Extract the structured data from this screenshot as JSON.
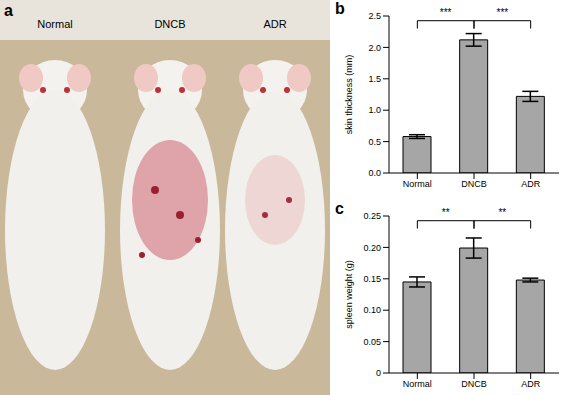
{
  "photo": {
    "panel": "a",
    "labels": [
      "Normal",
      "DNCB",
      "ADR"
    ]
  },
  "chart_data": [
    {
      "type": "bar",
      "panel": "b",
      "ylabel": "skin thickness  (mm)",
      "categories": [
        "Normal",
        "DNCB",
        "ADR"
      ],
      "values": [
        0.58,
        2.12,
        1.22
      ],
      "errors": [
        0.03,
        0.1,
        0.08
      ],
      "color": "#a6a6a6",
      "ylim": [
        0,
        2.5
      ],
      "yticks": [
        {
          "value": 0,
          "label": "0.0"
        },
        0.5,
        {
          "value": 1,
          "label": "1.0"
        },
        1.5,
        {
          "value": 2,
          "label": "2.0"
        },
        2.5
      ],
      "annotations": [
        {
          "from": "Normal",
          "to": "DNCB",
          "text": "***"
        },
        {
          "from": "DNCB",
          "to": "ADR",
          "text": "***"
        }
      ]
    },
    {
      "type": "bar",
      "panel": "c",
      "ylabel": "spleen weight (g)",
      "categories": [
        "Normal",
        "DNCB",
        "ADR"
      ],
      "values": [
        0.145,
        0.199,
        0.148
      ],
      "errors": [
        0.008,
        0.016,
        0.003
      ],
      "color": "#a6a6a6",
      "ylim": [
        0,
        0.25
      ],
      "yticks": [
        0,
        0.05,
        {
          "value": 0.1,
          "label": "0.10"
        },
        0.15,
        {
          "value": 0.2,
          "label": "0.20"
        },
        0.25
      ],
      "annotations": [
        {
          "from": "Normal",
          "to": "DNCB",
          "text": "**"
        },
        {
          "from": "DNCB",
          "to": "ADR",
          "text": "**"
        }
      ]
    }
  ]
}
